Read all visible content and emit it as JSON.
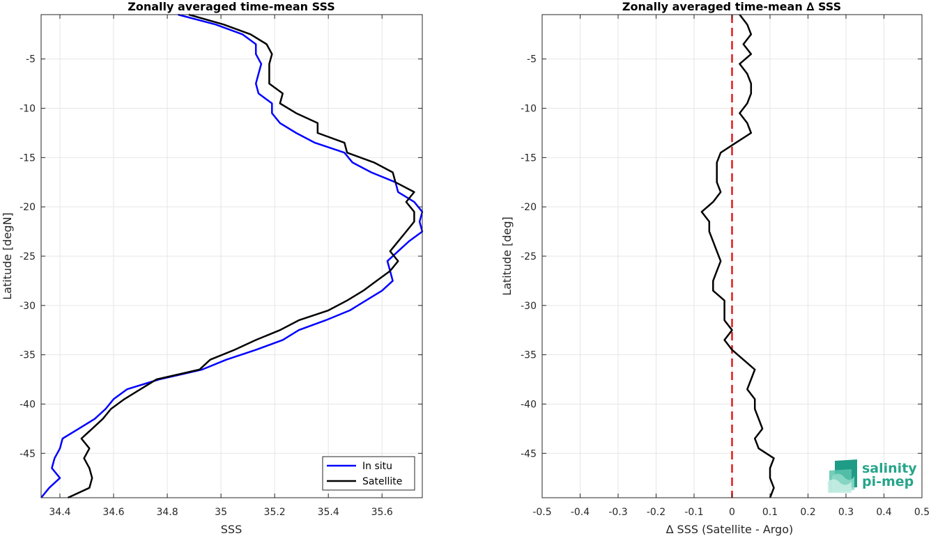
{
  "chart_data": [
    {
      "type": "line",
      "title": "Zonally averaged time-mean SSS",
      "xlabel": "SSS",
      "ylabel": "Latitude [degN]",
      "xlim": [
        34.33,
        35.75
      ],
      "ylim": [
        -49.5,
        -0.5
      ],
      "xticks": [
        34.4,
        34.6,
        34.8,
        35,
        35.2,
        35.4,
        35.6
      ],
      "xtick_labels": [
        "34.4",
        "34.6",
        "34.8",
        "35",
        "35.2",
        "35.4",
        "35.6"
      ],
      "yticks": [
        -5,
        -10,
        -15,
        -20,
        -25,
        -30,
        -35,
        -40,
        -45
      ],
      "ytick_labels": [
        "-5",
        "-10",
        "-15",
        "-20",
        "-25",
        "-30",
        "-35",
        "-40",
        "-45"
      ],
      "grid": true,
      "legend": {
        "position": "bottom-right",
        "entries": [
          "In situ",
          "Satellite"
        ]
      },
      "series": [
        {
          "name": "In situ",
          "color": "#0000ff",
          "x": [
            34.84,
            34.98,
            35.08,
            35.13,
            35.13,
            35.15,
            35.14,
            35.13,
            35.14,
            35.19,
            35.19,
            35.22,
            35.28,
            35.35,
            35.46,
            35.49,
            35.56,
            35.65,
            35.66,
            35.72,
            35.75,
            35.74,
            35.75,
            35.7,
            35.66,
            35.62,
            35.63,
            35.64,
            35.6,
            35.54,
            35.48,
            35.39,
            35.29,
            35.23,
            35.13,
            35.02,
            34.93,
            34.77,
            34.65,
            34.6,
            34.57,
            34.53,
            34.47,
            34.41,
            34.4,
            34.38,
            34.37,
            34.4,
            34.36,
            34.33
          ],
          "y": [
            -0.5,
            -1.5,
            -2.5,
            -3.5,
            -4.5,
            -5.5,
            -6.5,
            -7.5,
            -8.5,
            -9.5,
            -10.5,
            -11.5,
            -12.5,
            -13.5,
            -14.5,
            -15.5,
            -16.5,
            -17.5,
            -18.5,
            -19.5,
            -20.5,
            -21.5,
            -22.5,
            -23.5,
            -24.5,
            -25.5,
            -26.5,
            -27.5,
            -28.5,
            -29.5,
            -30.5,
            -31.5,
            -32.5,
            -33.5,
            -34.5,
            -35.5,
            -36.5,
            -37.5,
            -38.5,
            -39.5,
            -40.5,
            -41.5,
            -42.5,
            -43.5,
            -44.5,
            -45.5,
            -46.5,
            -47.5,
            -48.5,
            -49.5
          ]
        },
        {
          "name": "Satellite",
          "color": "#000000",
          "x": [
            34.88,
            35.01,
            35.11,
            35.17,
            35.19,
            35.18,
            35.18,
            35.18,
            35.23,
            35.22,
            35.28,
            35.36,
            35.36,
            35.46,
            35.47,
            35.57,
            35.64,
            35.65,
            35.72,
            35.69,
            35.72,
            35.72,
            35.69,
            35.66,
            35.63,
            35.66,
            35.63,
            35.58,
            35.53,
            35.47,
            35.4,
            35.29,
            35.22,
            35.13,
            35.05,
            34.96,
            34.92,
            34.76,
            34.7,
            34.64,
            34.59,
            34.56,
            34.52,
            34.48,
            34.51,
            34.49,
            34.51,
            34.52,
            34.51,
            34.43
          ],
          "y": [
            -0.5,
            -1.5,
            -2.5,
            -3.5,
            -4.5,
            -5.5,
            -6.5,
            -7.5,
            -8.5,
            -9.5,
            -10.5,
            -11.5,
            -12.5,
            -13.5,
            -14.5,
            -15.5,
            -16.5,
            -17.5,
            -18.5,
            -19.5,
            -20.5,
            -21.5,
            -22.5,
            -23.5,
            -24.5,
            -25.5,
            -26.5,
            -27.5,
            -28.5,
            -29.5,
            -30.5,
            -31.5,
            -32.5,
            -33.5,
            -34.5,
            -35.5,
            -36.5,
            -37.5,
            -38.5,
            -39.5,
            -40.5,
            -41.5,
            -42.5,
            -43.5,
            -44.5,
            -45.5,
            -46.5,
            -47.5,
            -48.5,
            -49.5
          ]
        }
      ]
    },
    {
      "type": "line",
      "title": "Zonally averaged time-mean ∆ SSS",
      "xlabel": "∆ SSS (Satellite - Argo)",
      "ylabel": "Latitude [deg]",
      "xlim": [
        -0.5,
        0.5
      ],
      "ylim": [
        -49.5,
        -0.5
      ],
      "xticks": [
        -0.5,
        -0.4,
        -0.3,
        -0.2,
        -0.1,
        0,
        0.1,
        0.2,
        0.3,
        0.4,
        0.5
      ],
      "xtick_labels": [
        "-0.5",
        "-0.4",
        "-0.3",
        "-0.2",
        "-0.1",
        "0",
        "0.1",
        "0.2",
        "0.3",
        "0.4",
        "0.5"
      ],
      "yticks": [
        -5,
        -10,
        -15,
        -20,
        -25,
        -30,
        -35,
        -40,
        -45
      ],
      "ytick_labels": [
        "-5",
        "-10",
        "-15",
        "-20",
        "-25",
        "-30",
        "-35",
        "-40",
        "-45"
      ],
      "grid": true,
      "reference_line": {
        "x": 0,
        "color": "#e11a1a",
        "style": "dashed"
      },
      "series": [
        {
          "color": "#000000",
          "x": [
            0.02,
            0.04,
            0.05,
            0.03,
            0.05,
            0.02,
            0.04,
            0.05,
            0.05,
            0.04,
            0.02,
            0.04,
            0.05,
            0.01,
            -0.03,
            -0.04,
            -0.04,
            -0.04,
            -0.03,
            -0.05,
            -0.08,
            -0.06,
            -0.06,
            -0.05,
            -0.04,
            -0.03,
            -0.04,
            -0.05,
            -0.05,
            -0.02,
            -0.02,
            -0.02,
            0.0,
            -0.02,
            0.0,
            0.03,
            0.06,
            0.05,
            0.04,
            0.06,
            0.06,
            0.07,
            0.08,
            0.06,
            0.07,
            0.11,
            0.1,
            0.1,
            0.11,
            0.1
          ],
          "y": [
            -0.5,
            -1.5,
            -2.5,
            -3.5,
            -4.5,
            -5.5,
            -6.5,
            -7.5,
            -8.5,
            -9.5,
            -10.5,
            -11.5,
            -12.5,
            -13.5,
            -14.5,
            -15.5,
            -16.5,
            -17.5,
            -18.5,
            -19.5,
            -20.5,
            -21.5,
            -22.5,
            -23.5,
            -24.5,
            -25.5,
            -26.5,
            -27.5,
            -28.5,
            -29.5,
            -30.5,
            -31.5,
            -32.5,
            -33.5,
            -34.5,
            -35.5,
            -36.5,
            -37.5,
            -38.5,
            -39.5,
            -40.5,
            -41.5,
            -42.5,
            -43.5,
            -44.5,
            -45.5,
            -46.5,
            -47.5,
            -48.5,
            -49.5
          ]
        }
      ]
    }
  ],
  "logo": {
    "line1": "salinity",
    "line2": "pi-mep",
    "color": "#27a58a"
  }
}
